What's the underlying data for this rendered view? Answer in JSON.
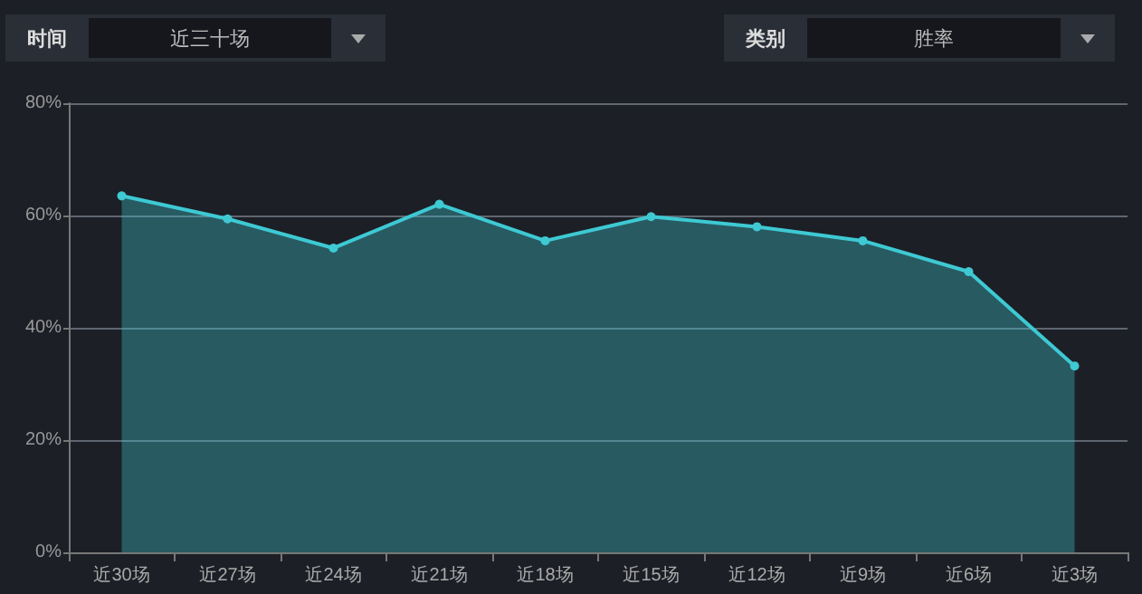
{
  "chart_data": {
    "type": "area",
    "categories": [
      "近30场",
      "近27场",
      "近24场",
      "近21场",
      "近18场",
      "近15场",
      "近12场",
      "近9场",
      "近6场",
      "近3场"
    ],
    "series": [
      {
        "color": "#3ec9d3",
        "values": [
          63.5,
          59.4,
          54.2,
          62,
          55.5,
          59.8,
          58,
          55.5,
          50,
          33.2
        ]
      }
    ],
    "ylim": [
      0,
      80
    ],
    "yticks": [
      {
        "value": 0,
        "label": "0%"
      },
      {
        "value": 20,
        "label": "20%"
      },
      {
        "value": 40,
        "label": "40%"
      },
      {
        "value": 60,
        "label": "60%"
      },
      {
        "value": 80,
        "label": "80%"
      }
    ],
    "grid": "y",
    "marker": "circle",
    "line_style": "solid",
    "annotations": [
      "时间",
      "近三十场",
      "类别",
      "胜率"
    ]
  }
}
